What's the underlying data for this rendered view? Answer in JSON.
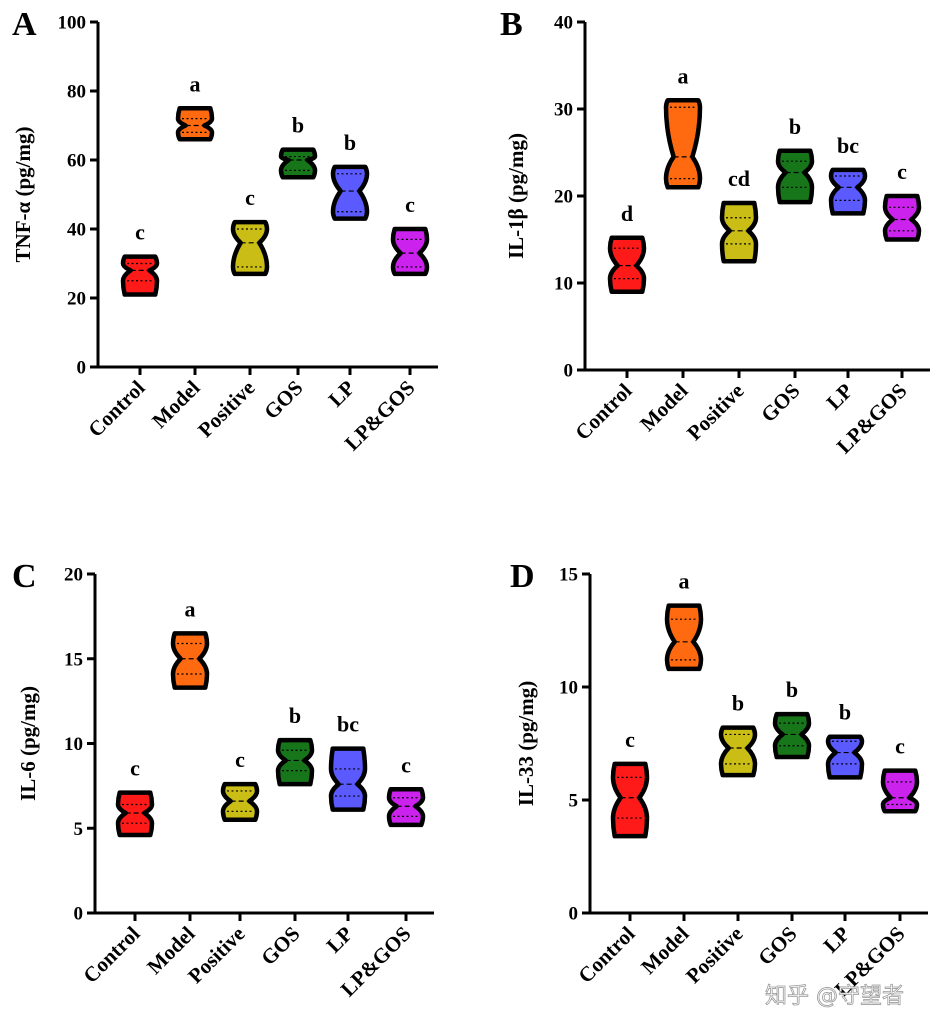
{
  "colors": {
    "Control": "#ff1a1a",
    "Model": "#ff6a10",
    "Positive": "#c9bd16",
    "GOS": "#17761a",
    "LP": "#5a5aff",
    "LP&GOS": "#cc22ee"
  },
  "chart_data": [
    {
      "panel": "A",
      "type": "violin",
      "ylabel": "TNF-α (pg/mg)",
      "ylim": [
        0,
        100
      ],
      "yticks": [
        "0",
        "20",
        "40",
        "60",
        "80",
        "100"
      ],
      "categories": [
        "Control",
        "Model",
        "Positive",
        "GOS",
        "LP",
        "LP&GOS"
      ],
      "groups": [
        {
          "name": "Control",
          "min": 21,
          "q1": 25,
          "median": 28,
          "q3": 30,
          "max": 32,
          "letter": "c"
        },
        {
          "name": "Model",
          "min": 66,
          "q1": 68,
          "median": 70,
          "q3": 72,
          "max": 75,
          "letter": "a"
        },
        {
          "name": "Positive",
          "min": 27,
          "q1": 29,
          "median": 36,
          "q3": 40,
          "max": 42,
          "letter": "c"
        },
        {
          "name": "GOS",
          "min": 55,
          "q1": 57,
          "median": 60,
          "q3": 61,
          "max": 63,
          "letter": "b"
        },
        {
          "name": "LP",
          "min": 43,
          "q1": 45,
          "median": 51,
          "q3": 56,
          "max": 58,
          "letter": "b"
        },
        {
          "name": "LP&GOS",
          "min": 27,
          "q1": 29,
          "median": 33,
          "q3": 37,
          "max": 40,
          "letter": "c"
        }
      ]
    },
    {
      "panel": "B",
      "type": "violin",
      "ylabel": "IL-1β (pg/mg)",
      "ylim": [
        0,
        40
      ],
      "yticks": [
        "0",
        "10",
        "20",
        "30",
        "40"
      ],
      "categories": [
        "Control",
        "Model",
        "Positive",
        "GOS",
        "LP",
        "LP&GOS"
      ],
      "groups": [
        {
          "name": "Control",
          "min": 9,
          "q1": 10.5,
          "median": 12,
          "q3": 14,
          "max": 15.2,
          "letter": "d"
        },
        {
          "name": "Model",
          "min": 21,
          "q1": 22,
          "median": 24.5,
          "q3": 30.2,
          "max": 31,
          "letter": "a"
        },
        {
          "name": "Positive",
          "min": 12.5,
          "q1": 14.5,
          "median": 16,
          "q3": 17.5,
          "max": 19.2,
          "letter": "cd"
        },
        {
          "name": "GOS",
          "min": 19.3,
          "q1": 21,
          "median": 22.7,
          "q3": 24,
          "max": 25.2,
          "letter": "b"
        },
        {
          "name": "LP",
          "min": 18,
          "q1": 19.5,
          "median": 21,
          "q3": 22.3,
          "max": 23,
          "letter": "bc"
        },
        {
          "name": "LP&GOS",
          "min": 15,
          "q1": 16,
          "median": 17.3,
          "q3": 18.7,
          "max": 20,
          "letter": "c"
        }
      ]
    },
    {
      "panel": "C",
      "type": "violin",
      "ylabel": "IL-6 (pg/mg)",
      "ylim": [
        0,
        20
      ],
      "yticks": [
        "0",
        "5",
        "10",
        "15",
        "20"
      ],
      "categories": [
        "Control",
        "Model",
        "Positive",
        "GOS",
        "LP",
        "LP&GOS"
      ],
      "groups": [
        {
          "name": "Control",
          "min": 4.6,
          "q1": 5.3,
          "median": 5.9,
          "q3": 6.4,
          "max": 7.1,
          "letter": "c"
        },
        {
          "name": "Model",
          "min": 13.3,
          "q1": 14.1,
          "median": 15,
          "q3": 15.9,
          "max": 16.5,
          "letter": "a"
        },
        {
          "name": "Positive",
          "min": 5.5,
          "q1": 6.0,
          "median": 6.6,
          "q3": 7.2,
          "max": 7.6,
          "letter": "c"
        },
        {
          "name": "GOS",
          "min": 7.6,
          "q1": 8.4,
          "median": 9.0,
          "q3": 9.6,
          "max": 10.2,
          "letter": "b"
        },
        {
          "name": "LP",
          "min": 6.1,
          "q1": 6.9,
          "median": 7.6,
          "q3": 8.5,
          "max": 9.7,
          "letter": "bc"
        },
        {
          "name": "LP&GOS",
          "min": 5.2,
          "q1": 5.7,
          "median": 6.3,
          "q3": 6.8,
          "max": 7.3,
          "letter": "c"
        }
      ]
    },
    {
      "panel": "D",
      "type": "violin",
      "ylabel": "IL-33 (pg/mg)",
      "ylim": [
        0,
        15
      ],
      "yticks": [
        "0",
        "5",
        "10",
        "15"
      ],
      "categories": [
        "Control",
        "Model",
        "Positive",
        "GOS",
        "LP",
        "LP&GOS"
      ],
      "groups": [
        {
          "name": "Control",
          "min": 3.4,
          "q1": 4.2,
          "median": 5.1,
          "q3": 6.0,
          "max": 6.6,
          "letter": "c"
        },
        {
          "name": "Model",
          "min": 10.8,
          "q1": 11.2,
          "median": 12.0,
          "q3": 13.0,
          "max": 13.6,
          "letter": "a"
        },
        {
          "name": "Positive",
          "min": 6.1,
          "q1": 6.6,
          "median": 7.3,
          "q3": 7.9,
          "max": 8.2,
          "letter": "b"
        },
        {
          "name": "GOS",
          "min": 6.9,
          "q1": 7.4,
          "median": 7.9,
          "q3": 8.4,
          "max": 8.8,
          "letter": "b"
        },
        {
          "name": "LP",
          "min": 6.0,
          "q1": 6.6,
          "median": 7.1,
          "q3": 7.6,
          "max": 7.8,
          "letter": "b"
        },
        {
          "name": "LP&GOS",
          "min": 4.5,
          "q1": 4.8,
          "median": 5.1,
          "q3": 5.8,
          "max": 6.3,
          "letter": "c"
        }
      ]
    }
  ],
  "watermark": "知乎 @守望者"
}
